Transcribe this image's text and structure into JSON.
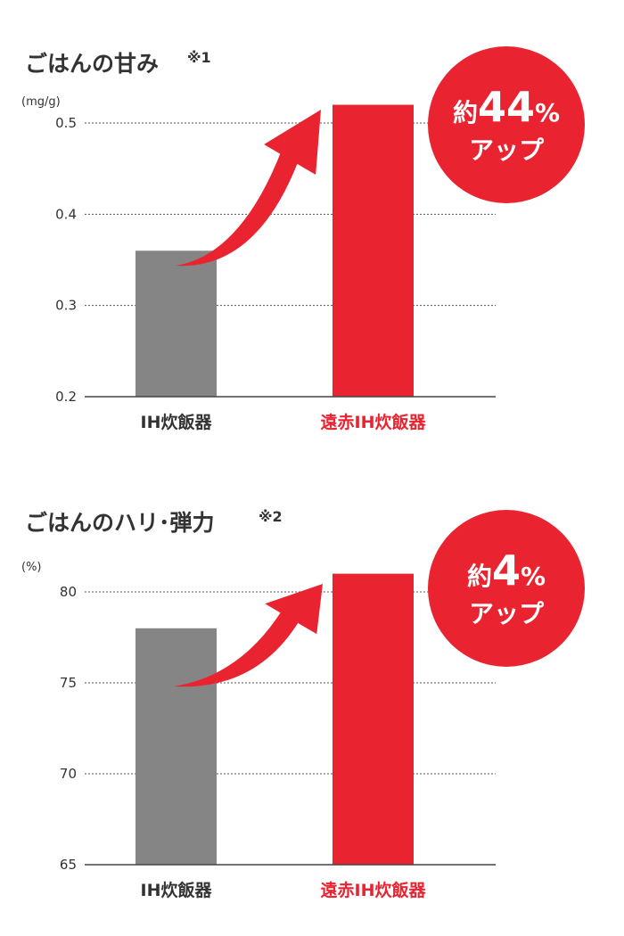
{
  "colors": {
    "gray": "#858585",
    "red": "#ea2330",
    "text": "#333333",
    "grid": "#555555"
  },
  "chart_data": [
    {
      "type": "bar",
      "title": "ごはんの甘み",
      "note": "※1",
      "ylabel": "(mg/g)",
      "ylim": [
        0.2,
        0.5
      ],
      "yticks": [
        "0.2",
        "0.3",
        "0.4",
        "0.5"
      ],
      "categories": [
        "IH炊飯器",
        "遠赤IH炊飯器"
      ],
      "values": [
        0.36,
        0.52
      ],
      "grid": true,
      "badge": {
        "prefix": "約",
        "value": "44",
        "unit": "%",
        "text": "アップ"
      }
    },
    {
      "type": "bar",
      "title": "ごはんのハリ･弾力",
      "note": "※2",
      "ylabel": "(%)",
      "ylim": [
        65,
        80
      ],
      "yticks": [
        "65",
        "70",
        "75",
        "80"
      ],
      "categories": [
        "IH炊飯器",
        "遠赤IH炊飯器"
      ],
      "values": [
        78,
        81
      ],
      "grid": true,
      "badge": {
        "prefix": "約",
        "value": "4",
        "unit": "%",
        "text": "アップ"
      }
    }
  ]
}
